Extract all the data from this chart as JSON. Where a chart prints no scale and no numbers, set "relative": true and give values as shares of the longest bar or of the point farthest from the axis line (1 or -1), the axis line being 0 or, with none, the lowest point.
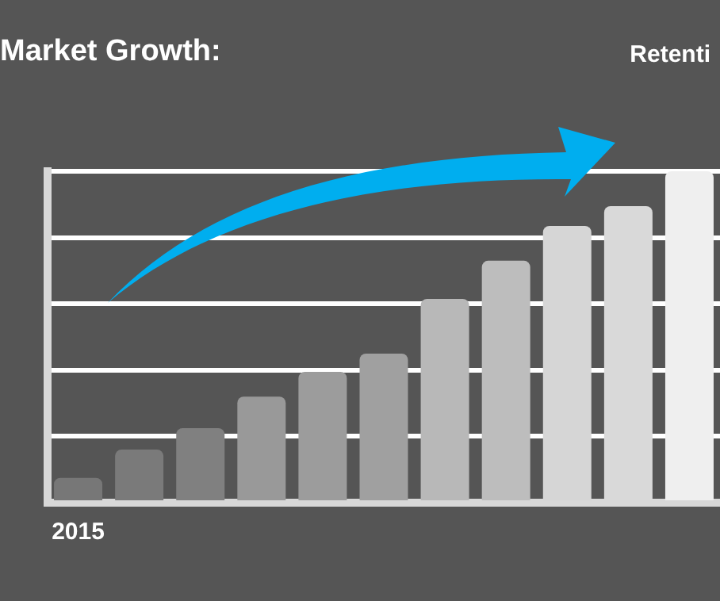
{
  "chart_data": {
    "type": "bar",
    "title": "Market Growth:",
    "annotations": [
      "Retenti"
    ],
    "relative": true,
    "grid": "y",
    "legend": false,
    "categories": [
      "2015",
      null,
      null,
      null,
      null,
      null,
      null,
      null,
      null,
      null,
      null
    ],
    "values": [
      0.075,
      0.16,
      0.225,
      0.32,
      0.395,
      0.45,
      0.615,
      0.73,
      0.835,
      0.895,
      1
    ],
    "colors": [
      "#777777",
      "#7a7a7a",
      "#808080",
      "#999999",
      "#9c9c9c",
      "#a0a0a0",
      "#b8b8b8",
      "#bdbdbd",
      "#d6d6d6",
      "#d9d9d9",
      "#efefef"
    ]
  }
}
